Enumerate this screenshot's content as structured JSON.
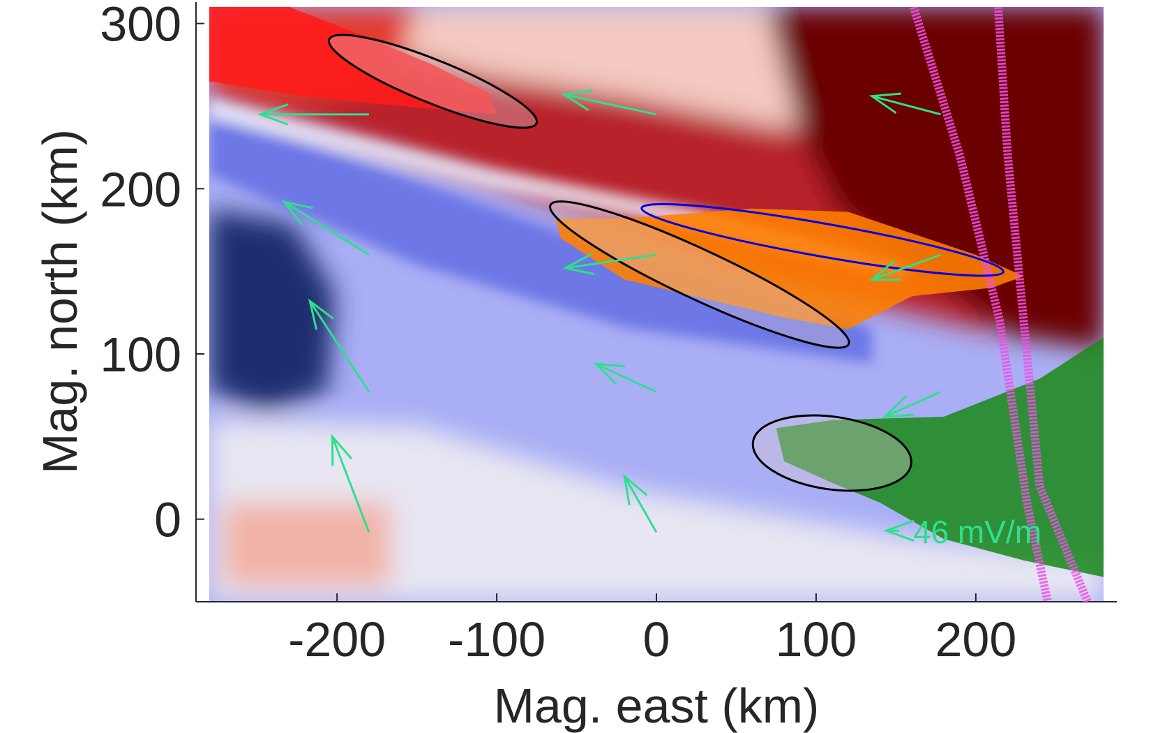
{
  "chart_data": {
    "type": "heatmap",
    "xlabel": "Mag. east (km)",
    "ylabel": "Mag. north (km)",
    "xlim": [
      -280,
      280
    ],
    "ylim": [
      -50,
      310
    ],
    "xticks": [
      -200,
      -100,
      0,
      100,
      200
    ],
    "yticks": [
      0,
      100,
      200,
      300
    ],
    "xtick_labels": [
      "-200",
      "-100",
      "0",
      "100",
      "200"
    ],
    "ytick_labels": [
      "0",
      "100",
      "200",
      "300"
    ],
    "grid": false,
    "colormap": {
      "negative": "#1a2f6e",
      "mid_negative": "#a0a8f5",
      "zero": "#ececf4",
      "mid_positive": "#f3b4a4",
      "positive": "#6b0000"
    },
    "vectors": {
      "color": "#2ee08c",
      "arrows": [
        {
          "x": -180,
          "y": 245,
          "u": -68,
          "v": 0
        },
        {
          "x": 0,
          "y": 245,
          "u": -58,
          "v": 12
        },
        {
          "x": 178,
          "y": 245,
          "u": -43,
          "v": 11
        },
        {
          "x": -180,
          "y": 160,
          "u": -53,
          "v": 32
        },
        {
          "x": 0,
          "y": 160,
          "u": -57,
          "v": -8
        },
        {
          "x": 178,
          "y": 160,
          "u": -43,
          "v": -15
        },
        {
          "x": -180,
          "y": 77,
          "u": -37,
          "v": 55
        },
        {
          "x": 0,
          "y": 77,
          "u": -38,
          "v": 17
        },
        {
          "x": 178,
          "y": 77,
          "u": -35,
          "v": -15
        },
        {
          "x": -180,
          "y": -8,
          "u": -23,
          "v": 58
        },
        {
          "x": 0,
          "y": -8,
          "u": -20,
          "v": 34
        }
      ],
      "reference": {
        "x": 152,
        "y": -7,
        "u": -8,
        "v": 0,
        "label": "46 mV/m"
      }
    },
    "ellipses": [
      {
        "name": "red",
        "cx": -140,
        "cy": 265,
        "rx": 70,
        "ry": 13,
        "angle": -22,
        "edge": "#000000",
        "tube": "#ff1a1a"
      },
      {
        "name": "orange",
        "cx": 27,
        "cy": 148,
        "rx": 103,
        "ry": 15,
        "angle": -25,
        "edge": "#000000",
        "tube": "#ff8000"
      },
      {
        "name": "orange-blue",
        "cx": 104,
        "cy": 169,
        "rx": 115,
        "ry": 10,
        "angle": -10,
        "edge": "#0000e0",
        "tube": "#ff8000"
      },
      {
        "name": "green",
        "cx": 110,
        "cy": 40,
        "rx": 50,
        "ry": 22,
        "angle": -8,
        "edge": "#000000",
        "tube": "#1e8a1e"
      }
    ],
    "track_color": "#f050e8"
  }
}
